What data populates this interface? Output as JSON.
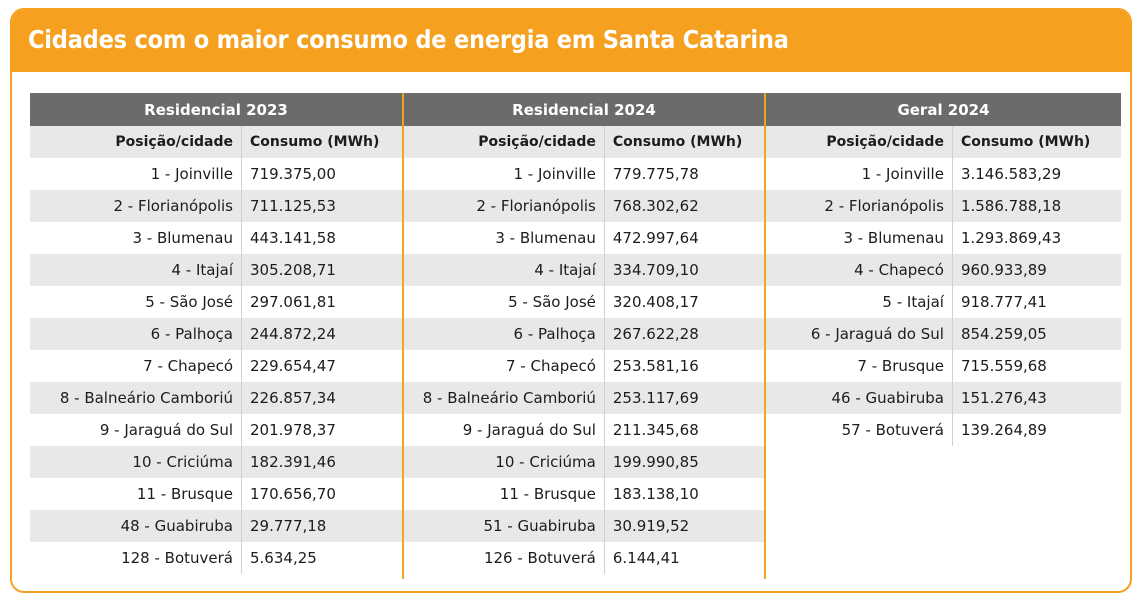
{
  "title": "Cidades com o maior consumo de energia em Santa Catarina",
  "colors": {
    "accent": "#f5a01e",
    "header_bg": "#6b6b6b",
    "stripe": "#e8e8e8"
  },
  "tables": [
    {
      "heading": "Residencial 2023",
      "col_city": "Posição/cidade",
      "col_value": "Consumo (MWh)",
      "rows": [
        [
          "1 - Joinville",
          "719.375,00"
        ],
        [
          "2 - Florianópolis",
          "711.125,53"
        ],
        [
          "3 - Blumenau",
          "443.141,58"
        ],
        [
          "4 - Itajaí",
          "305.208,71"
        ],
        [
          "5 - São José",
          "297.061,81"
        ],
        [
          "6 - Palhoça",
          "244.872,24"
        ],
        [
          "7 - Chapecó",
          "229.654,47"
        ],
        [
          "8 - Balneário Camboriú",
          "226.857,34"
        ],
        [
          "9 - Jaraguá do Sul",
          "201.978,37"
        ],
        [
          "10 - Criciúma",
          "182.391,46"
        ],
        [
          "11 - Brusque",
          "170.656,70"
        ],
        [
          "48 - Guabiruba",
          "29.777,18"
        ],
        [
          "128 - Botuverá",
          "5.634,25"
        ]
      ]
    },
    {
      "heading": "Residencial 2024",
      "col_city": "Posição/cidade",
      "col_value": "Consumo (MWh)",
      "rows": [
        [
          "1 - Joinville",
          "779.775,78"
        ],
        [
          "2 - Florianópolis",
          "768.302,62"
        ],
        [
          "3 - Blumenau",
          "472.997,64"
        ],
        [
          "4 - Itajaí",
          "334.709,10"
        ],
        [
          "5 - São José",
          "320.408,17"
        ],
        [
          "6 - Palhoça",
          "267.622,28"
        ],
        [
          "7 - Chapecó",
          "253.581,16"
        ],
        [
          "8 - Balneário Camboriú",
          "253.117,69"
        ],
        [
          "9 - Jaraguá do Sul",
          "211.345,68"
        ],
        [
          "10 - Criciúma",
          "199.990,85"
        ],
        [
          "11 - Brusque",
          "183.138,10"
        ],
        [
          "51 - Guabiruba",
          "30.919,52"
        ],
        [
          "126 - Botuverá",
          "6.144,41"
        ]
      ]
    },
    {
      "heading": "Geral 2024",
      "col_city": "Posição/cidade",
      "col_value": "Consumo (MWh)",
      "rows": [
        [
          "1 - Joinville",
          "3.146.583,29"
        ],
        [
          "2 - Florianópolis",
          "1.586.788,18"
        ],
        [
          "3 - Blumenau",
          "1.293.869,43"
        ],
        [
          "4 - Chapecó",
          "960.933,89"
        ],
        [
          "5 - Itajaí",
          "918.777,41"
        ],
        [
          "6 - Jaraguá do Sul",
          "854.259,05"
        ],
        [
          "7 - Brusque",
          "715.559,68"
        ],
        [
          "46 - Guabiruba",
          "151.276,43"
        ],
        [
          "57 - Botuverá",
          "139.264,89"
        ]
      ]
    }
  ]
}
